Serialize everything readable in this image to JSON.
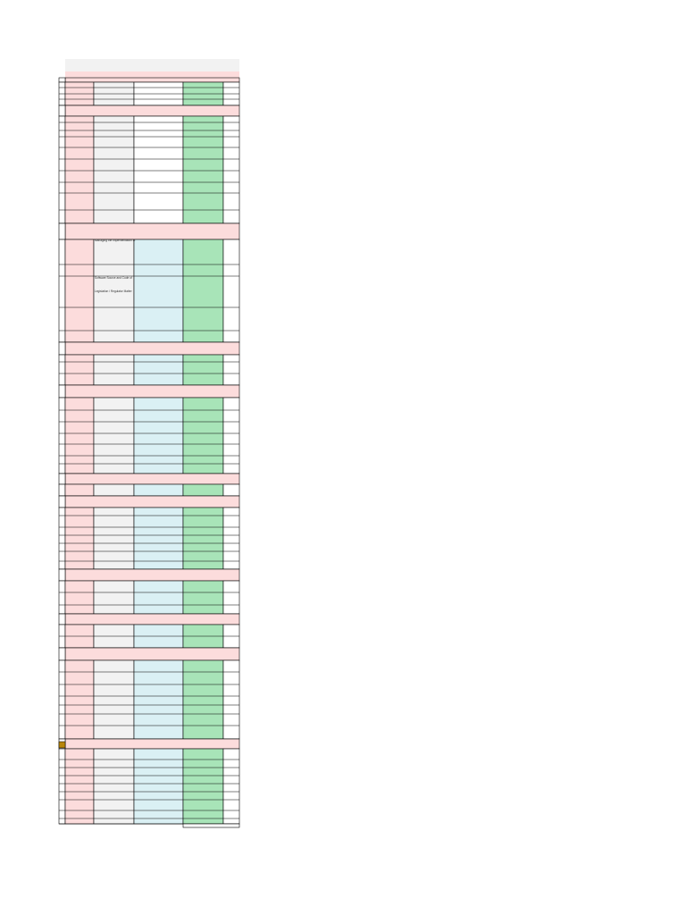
{
  "cells": [
    {
      "text": "Managing the implementation of"
    },
    {
      "text": "Software Source and Code of"
    },
    {
      "text": "Legislation / Regulator Matter"
    }
  ]
}
